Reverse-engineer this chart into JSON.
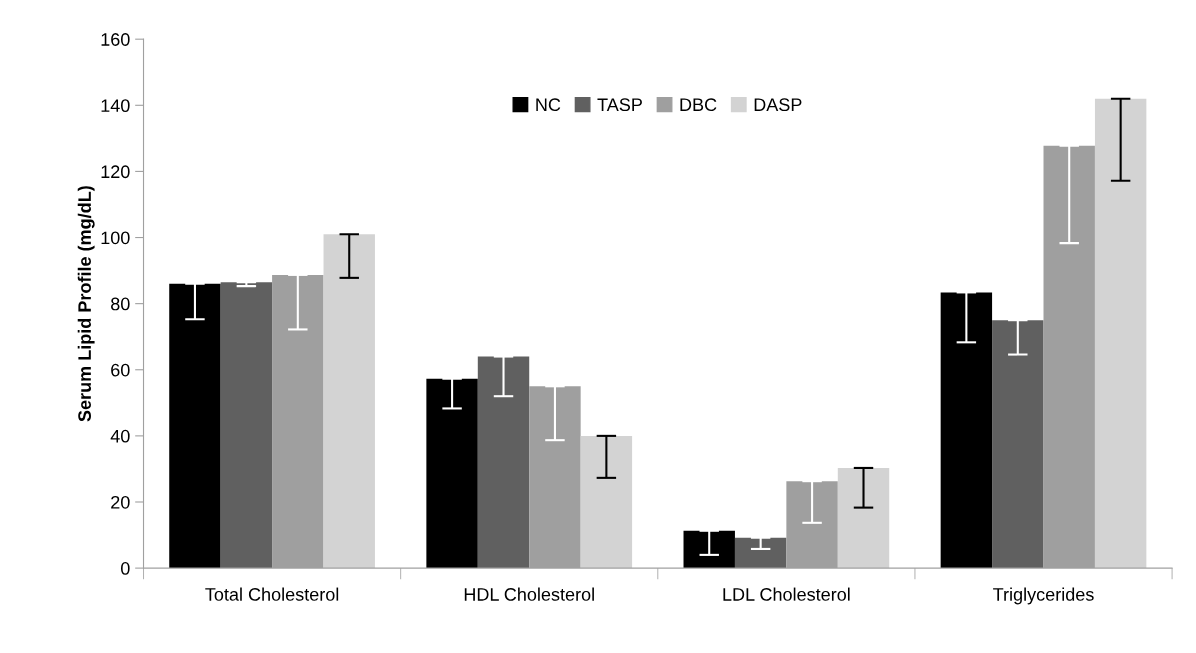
{
  "chart_data": {
    "type": "bar",
    "ylabel": "Serum Lipid Profile (mg/dL)",
    "categories": [
      "Total Cholesterol",
      "HDL Cholesterol",
      "LDL Cholesterol",
      "Triglycerides"
    ],
    "series": [
      {
        "name": "NC",
        "color": "#000000",
        "values": [
          86,
          57.3,
          11.3,
          83.4
        ],
        "errors": [
          [
            75.3,
            86
          ],
          [
            48.3,
            57.3
          ],
          [
            4,
            11.3
          ],
          [
            68.3,
            83.4
          ]
        ]
      },
      {
        "name": "TASP",
        "color": "#606060",
        "values": [
          86.5,
          64,
          9.2,
          75
        ],
        "errors": [
          [
            85.3,
            86.5
          ],
          [
            52,
            64
          ],
          [
            5.8,
            9.2
          ],
          [
            64.6,
            75
          ]
        ]
      },
      {
        "name": "DBC",
        "color": "#9f9f9f",
        "values": [
          88.7,
          55,
          26.3,
          127.8
        ],
        "errors": [
          [
            72.2,
            88.7
          ],
          [
            38.7,
            55
          ],
          [
            13.7,
            26.3
          ],
          [
            98.3,
            127.8
          ]
        ]
      },
      {
        "name": "DASP",
        "color": "#d3d3d3",
        "values": [
          101,
          40,
          30.3,
          142
        ],
        "errors": [
          [
            87.8,
            101
          ],
          [
            27.3,
            40
          ],
          [
            18.3,
            30.3
          ],
          [
            117.2,
            142
          ]
        ]
      }
    ],
    "ylim": [
      0,
      160
    ],
    "yticks": [
      0,
      20,
      40,
      60,
      80,
      100,
      120,
      140,
      160
    ],
    "grid": false,
    "legend": "top"
  }
}
